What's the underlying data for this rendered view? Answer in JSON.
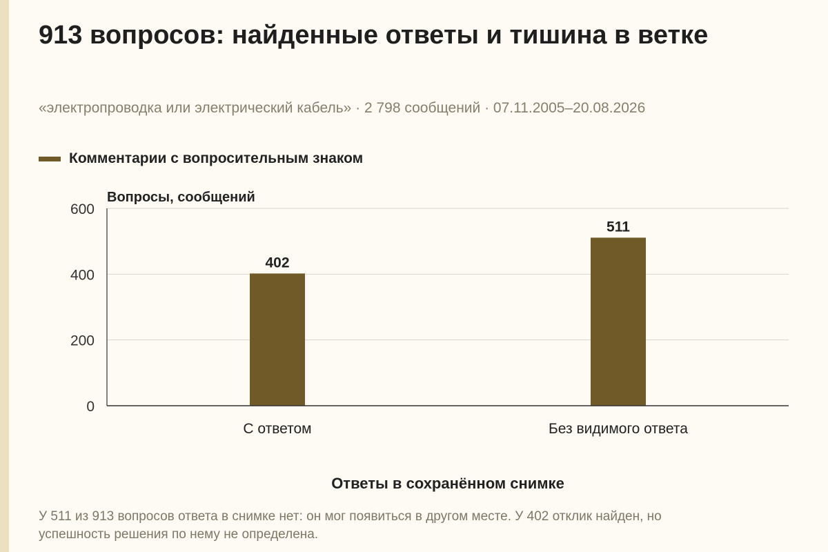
{
  "title": "913 вопросов: найденные ответы и тишина в ветке",
  "subtitle": "«электропроводка или электрический кабель» · 2 798 сообщений · 07.11.2005–20.08.2026",
  "colors": {
    "bar": "#6f5a28",
    "grid": "#d9d6cc",
    "axis": "#333333",
    "background": "#fdfbf3",
    "accent_stripe": "#ece0c1"
  },
  "footnote": "У 511 из 913 вопросов ответа в снимке нет: он мог появиться в другом месте. У 402 отклик найден, но успешность решения по нему не определена.",
  "chart_data": {
    "type": "bar",
    "categories": [
      "С ответом",
      "Без видимого ответа"
    ],
    "series": [
      {
        "name": "Комментарии с вопросительным знаком",
        "values": [
          402,
          511
        ]
      }
    ],
    "data_labels": [
      "402",
      "511"
    ],
    "ylabel": "Вопросы, сообщений",
    "xlabel": "Ответы в сохранённом снимке",
    "ylim": [
      0,
      600
    ],
    "yticks": [
      0,
      200,
      400,
      600
    ],
    "ytick_labels": [
      "0",
      "200",
      "400",
      "600"
    ],
    "grid": true,
    "legend": "top-left"
  }
}
